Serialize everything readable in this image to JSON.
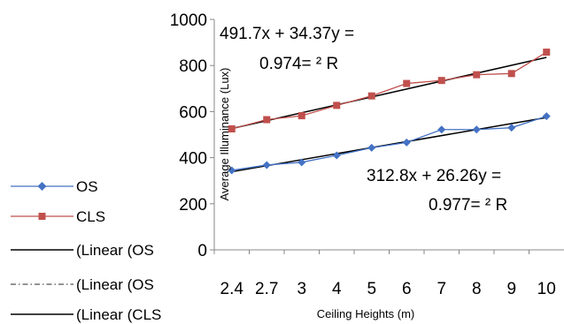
{
  "chart_data": {
    "type": "line",
    "title": "",
    "xlabel": "Ceiling Heights (m)",
    "ylabel": "Average Illuminance (Lux)",
    "categories": [
      "2.4",
      "2.7",
      "3",
      "4",
      "5",
      "6",
      "7",
      "8",
      "9",
      "10"
    ],
    "ylim": [
      0,
      1000
    ],
    "yticks": [
      "0",
      "200",
      "400",
      "600",
      "800",
      "1000"
    ],
    "grid": false,
    "legend_position": "left",
    "series": [
      {
        "name": "OS",
        "color": "#4472C4",
        "marker": "diamond",
        "values": [
          345,
          368,
          380,
          410,
          443,
          466,
          522,
          522,
          530,
          580
        ]
      },
      {
        "name": "CLS",
        "color": "#C0504D",
        "marker": "square",
        "values": [
          525,
          565,
          582,
          627,
          668,
          722,
          735,
          760,
          765,
          858
        ]
      }
    ],
    "trendlines": [
      {
        "name": "(Linear (OS",
        "style": "solid",
        "color": "#000000",
        "slope": 26.26,
        "intercept": 312.8
      },
      {
        "name": "(Linear (OS",
        "style": "dashdot",
        "color": "#000000"
      },
      {
        "name": "(Linear (CLS",
        "style": "solid",
        "color": "#000000",
        "slope": 34.37,
        "intercept": 491.7
      }
    ],
    "annotations": {
      "cls_eq_line1": "491.7x + 34.37y =",
      "cls_eq_line2": "0.974= ² R",
      "os_eq_line1": "312.8x + 26.26y =",
      "os_eq_line2": "0.977= ² R"
    }
  }
}
